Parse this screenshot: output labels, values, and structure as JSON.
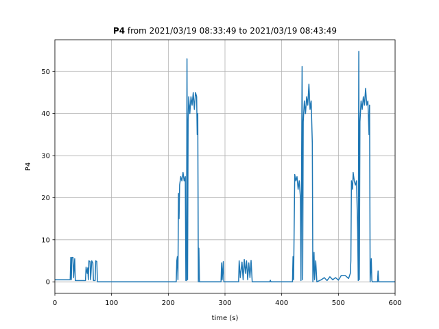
{
  "chart_data": {
    "type": "line",
    "title_parts": [
      "P4",
      "from 2021/03/19 08:33:49 to 2021/03/19 08:43:49"
    ],
    "xlabel": "time (s)",
    "ylabel": "P4",
    "x": [
      0,
      27,
      28,
      29,
      30,
      32,
      33,
      35,
      36,
      54,
      55,
      57,
      58,
      59,
      60,
      62,
      63,
      65,
      67,
      68,
      71,
      72,
      74,
      75,
      214,
      215,
      216,
      217,
      218,
      219,
      220,
      222,
      224,
      226,
      228,
      230,
      231,
      232,
      233,
      234,
      235,
      236,
      238,
      240,
      242,
      244,
      246,
      248,
      250,
      251,
      252,
      253,
      254,
      255,
      256,
      293,
      294,
      295,
      297,
      298,
      324,
      325,
      327,
      330,
      332,
      334,
      336,
      338,
      340,
      342,
      344,
      346,
      348,
      379,
      380,
      381,
      419,
      420,
      421,
      423,
      425,
      427,
      429,
      431,
      433,
      434,
      436,
      437,
      438,
      440,
      442,
      444,
      446,
      448,
      450,
      452,
      454,
      455,
      457,
      458,
      460,
      462,
      470,
      475,
      480,
      485,
      490,
      495,
      500,
      505,
      512,
      518,
      521,
      522,
      523,
      525,
      526,
      528,
      530,
      532,
      534,
      535,
      536,
      537,
      538,
      540,
      542,
      544,
      546,
      548,
      550,
      552,
      554,
      555,
      556,
      558,
      559,
      560,
      569,
      570,
      571,
      600
    ],
    "values": [
      0.5,
      0.5,
      5.8,
      0.5,
      5.8,
      5.8,
      1,
      5.5,
      0.3,
      0.3,
      3.5,
      2,
      3.3,
      0.5,
      5,
      4.8,
      0.5,
      5,
      4.5,
      0.3,
      0.3,
      5,
      4.8,
      0,
      0,
      5,
      6,
      0.5,
      21,
      15,
      23,
      25,
      24,
      26,
      24,
      25,
      0.3,
      0.3,
      53,
      0.5,
      38,
      44,
      40,
      44,
      42,
      45,
      41,
      45,
      44,
      35,
      40,
      0,
      8,
      0,
      0,
      0,
      4.5,
      0.5,
      4.8,
      0,
      0,
      5,
      1,
      4.7,
      0.5,
      5.3,
      2,
      5,
      0.5,
      4.5,
      1,
      5.1,
      0,
      0,
      0.4,
      0,
      0,
      6,
      0.5,
      25.5,
      24,
      25,
      22,
      24,
      20,
      0.3,
      51.2,
      0.5,
      38,
      43,
      40,
      44,
      42,
      47,
      41,
      43,
      33,
      0,
      7,
      0.5,
      5,
      0,
      0.5,
      1,
      0.3,
      1.2,
      0.5,
      1,
      0.4,
      1.5,
      1.5,
      0.8,
      2,
      5,
      24,
      22,
      26,
      24,
      23,
      24,
      12,
      0.3,
      54.8,
      0.5,
      38,
      43,
      41,
      44,
      42,
      46,
      42,
      43,
      35,
      42,
      0,
      5.5,
      0.3,
      0,
      0,
      2.6,
      0,
      0
    ],
    "color": "#1f77b4",
    "xlim": [
      0,
      600
    ],
    "xticks": [
      0,
      100,
      200,
      300,
      400,
      500,
      600
    ],
    "ylim": [
      -2.74,
      57.54
    ],
    "yticks": [
      0,
      10,
      20,
      30,
      40,
      50
    ],
    "grid": true
  }
}
